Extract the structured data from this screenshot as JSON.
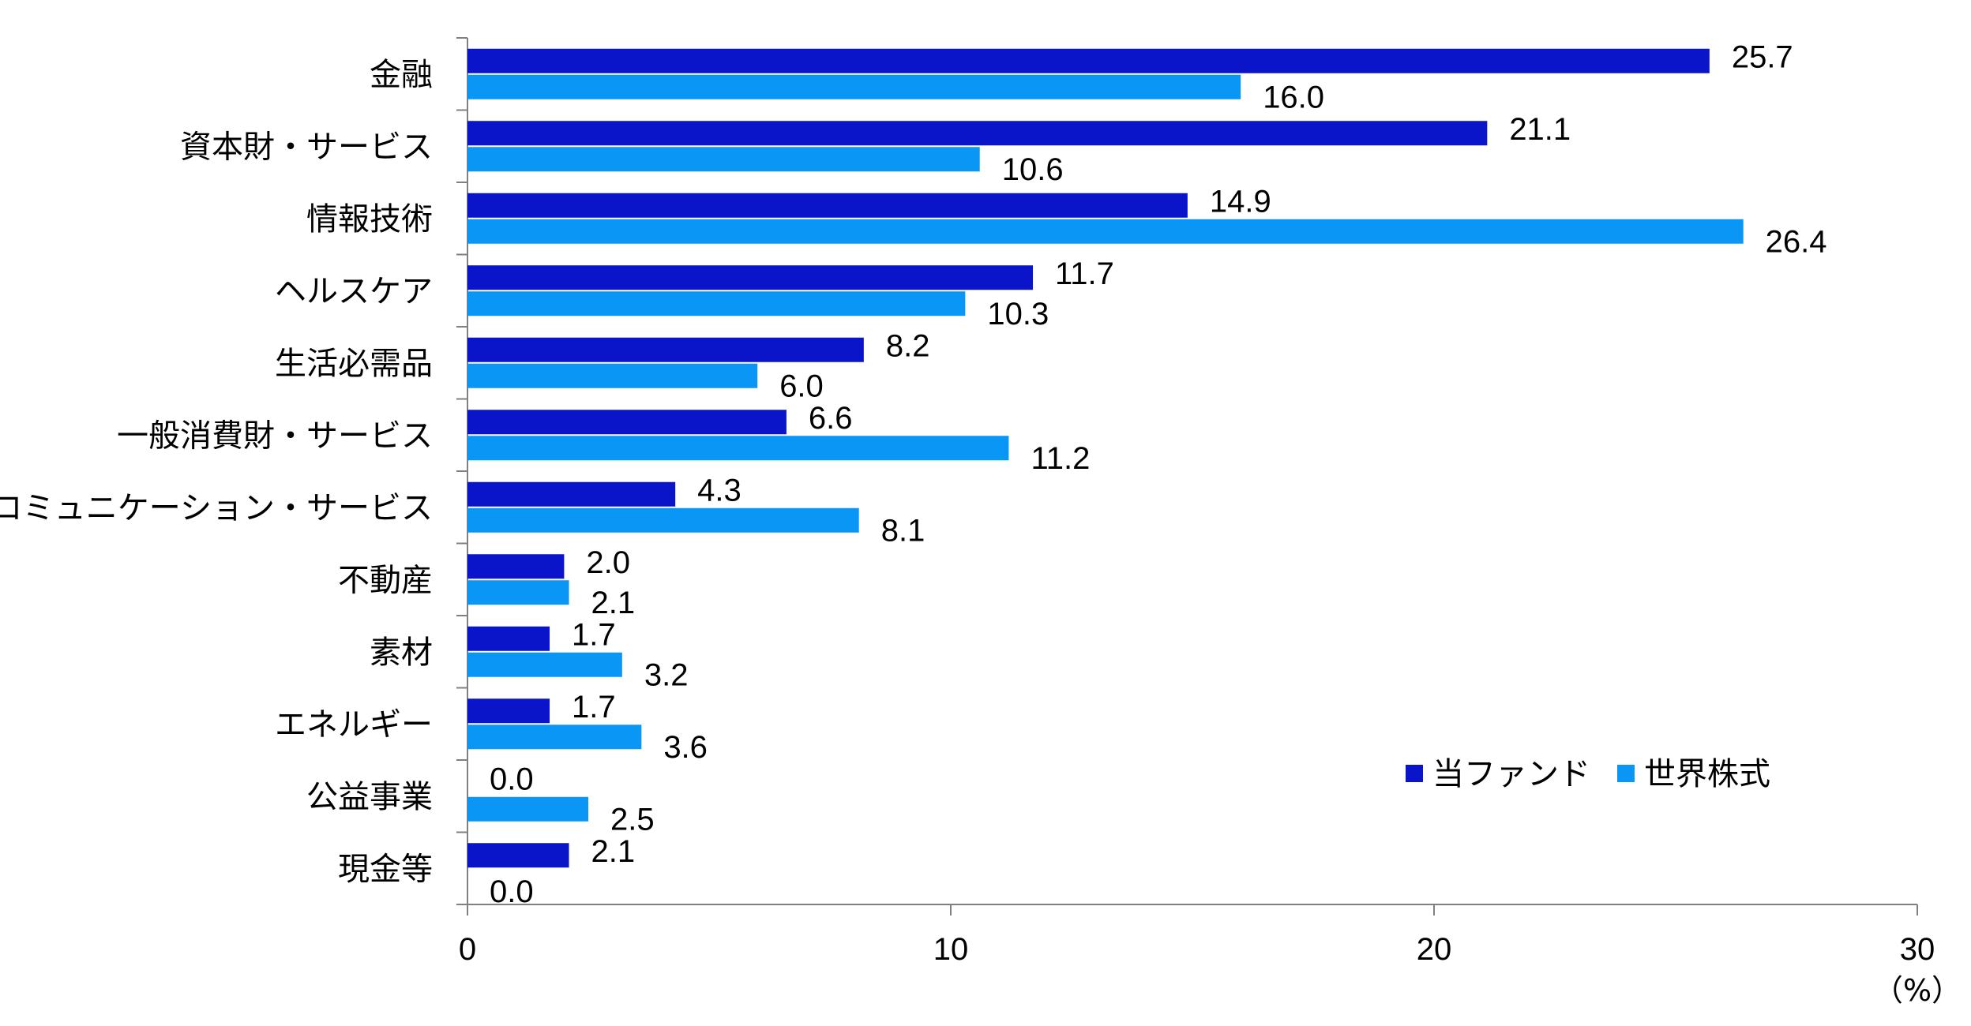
{
  "chart_data": {
    "type": "bar",
    "orientation": "horizontal",
    "categories": [
      "金融",
      "資本財・サービス",
      "情報技術",
      "ヘルスケア",
      "生活必需品",
      "一般消費財・サービス",
      "コミュニケーション・サービス",
      "不動産",
      "素材",
      "エネルギー",
      "公益事業",
      "現金等"
    ],
    "series": [
      {
        "name": "当ファンド",
        "color": "#0A14C8",
        "values": [
          25.7,
          21.1,
          14.9,
          11.7,
          8.2,
          6.6,
          4.3,
          2.0,
          1.7,
          1.7,
          0.0,
          2.1
        ],
        "labels": [
          "25.7",
          "21.1",
          "14.9",
          "11.7",
          "8.2",
          "6.6",
          "4.3",
          "2.0",
          "1.7",
          "1.7",
          "0.0",
          "2.1"
        ]
      },
      {
        "name": "世界株式",
        "color": "#0A96F5",
        "values": [
          16.0,
          10.6,
          26.4,
          10.3,
          6.0,
          11.2,
          8.1,
          2.1,
          3.2,
          3.6,
          2.5,
          0.0
        ],
        "labels": [
          "16.0",
          "10.6",
          "26.4",
          "10.3",
          "6.0",
          "11.2",
          "8.1",
          "2.1",
          "3.2",
          "3.6",
          "2.5",
          "0.0"
        ]
      }
    ],
    "xlim": [
      0,
      30
    ],
    "xticks": [
      "0",
      "10",
      "20",
      "30"
    ],
    "xunit": "（%）",
    "legend_position": "bottom-right",
    "grid": false
  }
}
